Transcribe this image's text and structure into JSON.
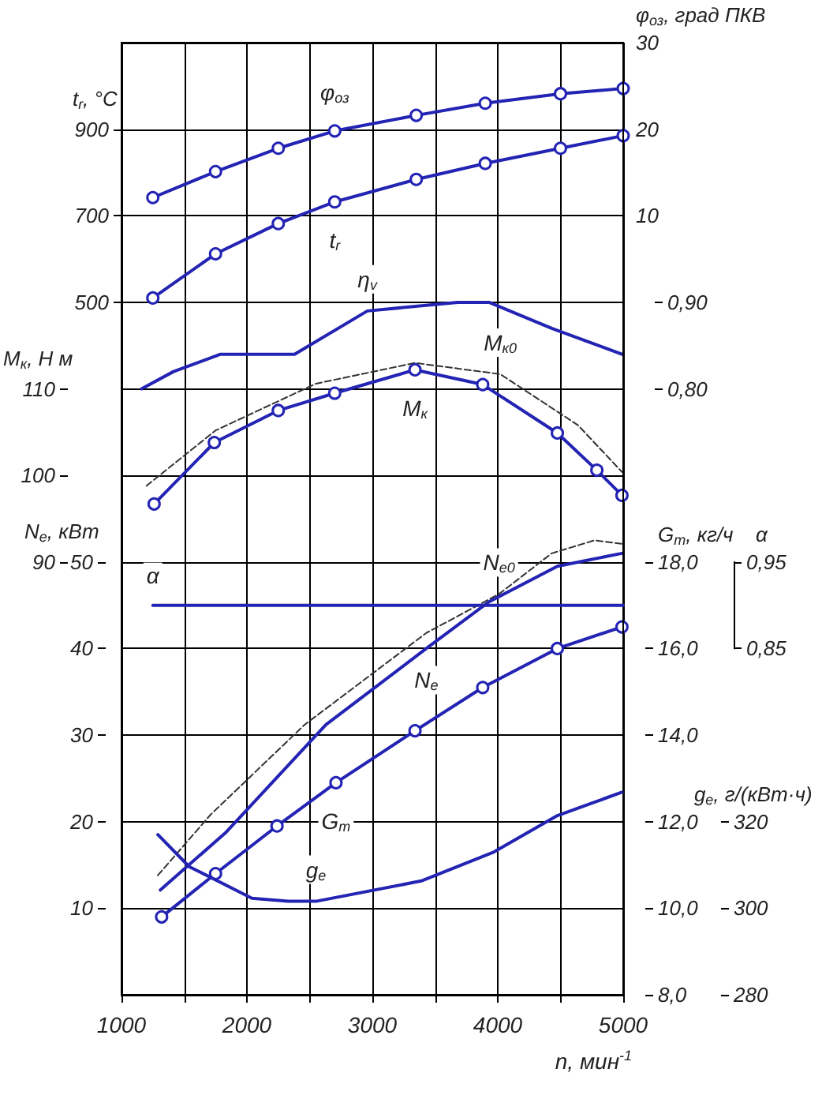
{
  "chart_data": [
    {
      "type": "line",
      "xlabel": "n, мин$^{-1}$",
      "xlim": [
        1000,
        5000
      ],
      "xticks": [
        1000,
        {
          "value": 1500,
          "label": null
        },
        2000,
        {
          "value": 2500,
          "label": null
        },
        3000,
        {
          "value": 3500,
          "label": null
        },
        4000,
        {
          "value": 4500,
          "label": null
        },
        5000
      ],
      "ylabel": "t$_{r}$, °C",
      "ylim": [
        -1100,
        1100
      ],
      "yticks": [
        500,
        700,
        900
      ],
      "y2label": "φ$_{оз}$, град ПКВ",
      "y2lim": [
        -80,
        30
      ],
      "y2ticks": [
        10,
        20,
        30
      ],
      "y3lim": [
        0.1,
        1.2
      ],
      "y3ticks": [
        {
          "value": 0.8,
          "label": "0,80"
        },
        {
          "value": 0.9,
          "label": "0,90"
        }
      ],
      "grid": true,
      "marker": "none",
      "line_style": "solid",
      "series": [
        {
          "name": "φ$_{оз}$",
          "axis": "y2",
          "marker": "circle",
          "color": "#2323b4",
          "x": [
            1250,
            1750,
            2250,
            2700,
            3350,
            3900,
            4500,
            5000
          ],
          "values": [
            12.1,
            15.1,
            17.8,
            19.8,
            21.6,
            23.0,
            24.1,
            24.7
          ]
        },
        {
          "name": "t$_{r}$",
          "marker": "circle",
          "color": "#2323b4",
          "x": [
            1250,
            1750,
            2250,
            2700,
            3350,
            3900,
            4500,
            5000
          ],
          "values": [
            510,
            612,
            682,
            732,
            784,
            821,
            856,
            885
          ]
        },
        {
          "name": "η$_{v}$",
          "axis": "y3",
          "color": "#2323b4",
          "x": [
            1160,
            1415,
            1790,
            2380,
            2960,
            3680,
            3930,
            4430,
            4990
          ],
          "values": [
            0.8,
            0.82,
            0.84,
            0.84,
            0.89,
            0.9,
            0.9,
            0.87,
            0.84
          ]
        }
      ]
    },
    {
      "type": "line",
      "tick_labels": "y",
      "xlim": [
        1000,
        5000
      ],
      "ylabel": "M$_{к}$, Н м",
      "ylim": [
        40,
        150
      ],
      "yticks": [
        90,
        100,
        110
      ],
      "y2label": "N$_{e}$, кВт",
      "y2lim": [
        0,
        110
      ],
      "y2ticks": [
        10,
        20,
        30,
        40,
        50
      ],
      "y3label": "G$_{т}$, кг/ч",
      "y3lim": [
        8,
        30
      ],
      "y3ticks": [
        {
          "value": 8,
          "label": "8,0"
        },
        {
          "value": 10,
          "label": "10,0"
        },
        {
          "value": 12,
          "label": "12,0"
        },
        {
          "value": 14,
          "label": "14,0"
        },
        {
          "value": 16,
          "label": "16,0"
        },
        {
          "value": 18,
          "label": "18,0"
        }
      ],
      "marker": "none",
      "line_style": "solid",
      "series": [
        {
          "name": "M$_{к0}$",
          "color": "#333333",
          "line_style": "dashed",
          "x": [
            1200,
            1750,
            2550,
            3340,
            4020,
            4640,
            4990
          ],
          "values": [
            98.8,
            105.2,
            110.6,
            113.0,
            111.7,
            105.8,
            100.4
          ]
        },
        {
          "name": "M$_{к}$",
          "marker": "circle",
          "color": "#2323b4",
          "x": [
            1260,
            1740,
            2250,
            2700,
            3340,
            3880,
            4475,
            4790,
            4990
          ],
          "values": [
            96.7,
            103.8,
            107.5,
            109.5,
            112.2,
            110.5,
            104.9,
            100.6,
            97.7
          ]
        },
        {
          "name": "N$_{e0}$",
          "axis": "y2",
          "color": "#333333",
          "line_style": "dashed",
          "x": [
            1290,
            1710,
            2460,
            3430,
            4010,
            4430,
            4770,
            4990
          ],
          "values": [
            13.8,
            20.8,
            31.2,
            41.8,
            46.3,
            51.0,
            52.5,
            52.1
          ]
        },
        {
          "name": "N$_{e}$",
          "axis": "y2",
          "color": "#2323b4",
          "x": [
            1310,
            1835,
            2630,
            3430,
            3930,
            4475,
            4990
          ],
          "values": [
            12.1,
            18.8,
            31.2,
            40.0,
            45.4,
            49.5,
            51.0
          ]
        },
        {
          "name": "G$_{т}$",
          "axis": "y3",
          "marker": "circle",
          "color": "#2323b4",
          "x": [
            1320,
            1750,
            2240,
            2710,
            3340,
            3880,
            4475,
            4990
          ],
          "values": [
            9.8,
            10.8,
            11.9,
            12.9,
            14.1,
            15.1,
            16.0,
            16.5
          ]
        }
      ]
    },
    {
      "type": "line",
      "tick_labels": "y",
      "xlim": [
        1000,
        5000
      ],
      "ylabel": "g$_{e}$, г/(кВт·ч)",
      "ylim": [
        280,
        500
      ],
      "yticks": [
        280,
        300,
        320
      ],
      "marker": "none",
      "line_style": "solid",
      "series": [
        {
          "name": "g$_{e}$",
          "color": "#2323b4",
          "x": [
            1290,
            1540,
            2040,
            2330,
            2550,
            3390,
            3970,
            4475,
            4990
          ],
          "values": [
            317,
            309.6,
            302.3,
            301.6,
            301.6,
            306.3,
            313,
            321.4,
            326.8
          ]
        }
      ]
    },
    {
      "type": "line",
      "tick_labels": "y",
      "xlim": [
        1000,
        5000
      ],
      "ylabel": "α",
      "ylim": [
        0.85,
        0.95
      ],
      "yticks": [
        {
          "value": 0.85,
          "label": "0,85"
        },
        {
          "value": 0.95,
          "label": "0,95"
        }
      ],
      "marker": "none",
      "line_style": "solid",
      "series": [
        {
          "name": "α",
          "color": "#2323b4",
          "x": [
            1250,
            5000
          ],
          "values": [
            0.9,
            0.9
          ]
        }
      ]
    }
  ]
}
